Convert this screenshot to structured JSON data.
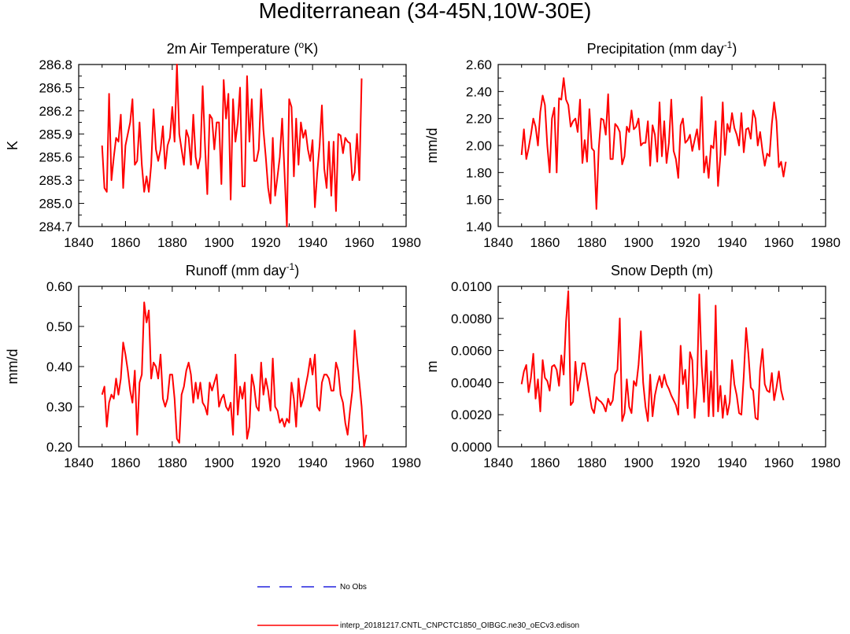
{
  "title": "Mediterranean (34-45N,10W-30E)",
  "colors": {
    "model_line": "#ff0000",
    "obs_line": "#2222dd",
    "axis": "#000000"
  },
  "legend": {
    "items": [
      {
        "label": "No Obs",
        "style": "dashed",
        "color": "#2222dd"
      },
      {
        "label": "interp_20181217.CNTL_CNPCTC1850_OIBGC.ne30_oECv3.edison",
        "style": "solid",
        "color": "#ff0000"
      }
    ]
  },
  "chart_data": [
    {
      "type": "line",
      "title": "2m Air Temperature (",
      "title_sup": "o",
      "title_tail": "K)",
      "ylabel": "K",
      "xlim": [
        1840,
        1980
      ],
      "ylim": [
        284.7,
        286.8
      ],
      "xticks": [
        1840,
        1860,
        1880,
        1900,
        1920,
        1940,
        1960,
        1980
      ],
      "yticks": [
        "284.7",
        "285.0",
        "285.3",
        "285.6",
        "285.9",
        "286.2",
        "286.5",
        "286.8"
      ],
      "x_start": 1850,
      "series": [
        {
          "name": "interp_20181217.CNTL_CNPCTC1850_OIBGC.ne30_oECv3.edison",
          "values": [
            285.75,
            285.2,
            285.15,
            286.42,
            285.3,
            285.6,
            285.85,
            285.8,
            286.15,
            285.2,
            285.75,
            285.9,
            286.05,
            286.35,
            285.5,
            285.55,
            286.05,
            285.5,
            285.15,
            285.35,
            285.15,
            285.5,
            286.22,
            285.7,
            285.55,
            285.7,
            286.0,
            285.45,
            285.75,
            285.85,
            286.25,
            285.8,
            286.8,
            285.9,
            285.7,
            285.5,
            285.95,
            285.85,
            285.5,
            286.15,
            285.6,
            285.45,
            285.6,
            286.52,
            285.75,
            285.12,
            286.15,
            286.1,
            285.7,
            286.05,
            286.05,
            285.25,
            286.6,
            286.1,
            286.42,
            285.05,
            286.35,
            285.8,
            286.05,
            286.5,
            285.22,
            285.22,
            286.65,
            285.8,
            286.35,
            285.55,
            285.55,
            285.7,
            286.48,
            285.95,
            285.6,
            285.2,
            285.0,
            285.85,
            285.1,
            285.35,
            285.6,
            286.1,
            285.4,
            284.7,
            286.35,
            286.25,
            285.35,
            286.1,
            285.5,
            286.05,
            285.85,
            285.95,
            285.7,
            285.55,
            285.82,
            284.95,
            285.4,
            285.75,
            286.27,
            285.45,
            285.2,
            285.8,
            285.1,
            285.8,
            284.9,
            285.9,
            285.88,
            285.65,
            285.85,
            285.8,
            285.78,
            285.3,
            285.4,
            285.9,
            285.3,
            286.62
          ]
        }
      ]
    },
    {
      "type": "line",
      "title": "Precipitation (mm day",
      "title_sup": "-1",
      "title_tail": ")",
      "ylabel": "mm/d",
      "xlim": [
        1840,
        1980
      ],
      "ylim": [
        1.4,
        2.6
      ],
      "xticks": [
        1840,
        1860,
        1880,
        1900,
        1920,
        1940,
        1960,
        1980
      ],
      "yticks": [
        "1.40",
        "1.60",
        "1.80",
        "2.00",
        "2.20",
        "2.40",
        "2.60"
      ],
      "x_start": 1850,
      "series": [
        {
          "name": "interp_20181217.CNTL_CNPCTC1850_OIBGC.ne30_oECv3.edison",
          "values": [
            1.93,
            2.12,
            1.9,
            1.98,
            2.08,
            2.2,
            2.14,
            2.0,
            2.25,
            2.37,
            2.3,
            2.0,
            1.8,
            2.2,
            2.28,
            1.8,
            2.35,
            2.34,
            2.5,
            2.34,
            2.3,
            2.14,
            2.18,
            2.2,
            2.1,
            2.34,
            1.87,
            2.04,
            1.88,
            2.27,
            1.98,
            1.96,
            1.53,
            1.98,
            2.2,
            2.19,
            2.08,
            2.38,
            1.9,
            1.9,
            2.16,
            2.14,
            2.1,
            1.86,
            1.92,
            2.14,
            2.1,
            2.26,
            2.12,
            2.14,
            2.2,
            2.0,
            2.02,
            2.02,
            2.18,
            1.85,
            2.15,
            2.08,
            1.88,
            2.32,
            1.92,
            2.18,
            1.87,
            2.02,
            2.34,
            1.96,
            1.9,
            1.76,
            2.15,
            2.2,
            2.02,
            2.04,
            2.08,
            1.96,
            2.04,
            2.12,
            1.97,
            2.36,
            1.8,
            1.92,
            1.76,
            2.0,
            1.98,
            2.18,
            1.7,
            1.92,
            2.32,
            1.93,
            2.16,
            2.1,
            2.24,
            2.13,
            2.08,
            2.0,
            2.24,
            1.95,
            2.12,
            2.13,
            2.05,
            2.26,
            2.2,
            2.0,
            2.1,
            1.96,
            1.85,
            1.94,
            1.92,
            2.16,
            2.32,
            2.18,
            1.84,
            1.88,
            1.77,
            1.88
          ]
        }
      ]
    },
    {
      "type": "line",
      "title": "Runoff (mm day",
      "title_sup": "-1",
      "title_tail": ")",
      "ylabel": "mm/d",
      "xlim": [
        1840,
        1980
      ],
      "ylim": [
        0.2,
        0.6
      ],
      "xticks": [
        1840,
        1860,
        1880,
        1900,
        1920,
        1940,
        1960,
        1980
      ],
      "yticks": [
        "0.20",
        "0.30",
        "0.40",
        "0.50",
        "0.60"
      ],
      "x_start": 1850,
      "series": [
        {
          "name": "interp_20181217.CNTL_CNPCTC1850_OIBGC.ne30_oECv3.edison",
          "values": [
            0.33,
            0.35,
            0.25,
            0.31,
            0.33,
            0.32,
            0.37,
            0.33,
            0.37,
            0.46,
            0.43,
            0.39,
            0.34,
            0.31,
            0.39,
            0.23,
            0.36,
            0.38,
            0.56,
            0.51,
            0.54,
            0.37,
            0.41,
            0.4,
            0.37,
            0.43,
            0.32,
            0.3,
            0.32,
            0.38,
            0.38,
            0.32,
            0.22,
            0.21,
            0.33,
            0.35,
            0.39,
            0.41,
            0.38,
            0.31,
            0.36,
            0.32,
            0.36,
            0.31,
            0.3,
            0.28,
            0.36,
            0.34,
            0.36,
            0.38,
            0.3,
            0.32,
            0.33,
            0.3,
            0.29,
            0.31,
            0.23,
            0.43,
            0.28,
            0.35,
            0.32,
            0.36,
            0.22,
            0.25,
            0.38,
            0.35,
            0.3,
            0.29,
            0.41,
            0.33,
            0.37,
            0.34,
            0.29,
            0.42,
            0.3,
            0.29,
            0.26,
            0.27,
            0.25,
            0.27,
            0.26,
            0.36,
            0.32,
            0.25,
            0.37,
            0.3,
            0.32,
            0.35,
            0.38,
            0.42,
            0.38,
            0.43,
            0.3,
            0.29,
            0.36,
            0.38,
            0.38,
            0.37,
            0.34,
            0.34,
            0.41,
            0.39,
            0.33,
            0.31,
            0.26,
            0.23,
            0.29,
            0.34,
            0.49,
            0.42,
            0.36,
            0.3,
            0.2,
            0.23
          ]
        }
      ]
    },
    {
      "type": "line",
      "title": "Snow Depth (m)",
      "title_sup": "",
      "title_tail": "",
      "ylabel": "m",
      "xlim": [
        1840,
        1980
      ],
      "ylim": [
        0.0,
        0.01
      ],
      "xticks": [
        1840,
        1860,
        1880,
        1900,
        1920,
        1940,
        1960,
        1980
      ],
      "yticks": [
        "0.0000",
        "0.0020",
        "0.0040",
        "0.0060",
        "0.0080",
        "0.0100"
      ],
      "x_start": 1850,
      "series": [
        {
          "name": "interp_20181217.CNTL_CNPCTC1850_OIBGC.ne30_oECv3.edison",
          "values": [
            0.0039,
            0.0047,
            0.0051,
            0.0034,
            0.0043,
            0.0058,
            0.003,
            0.0042,
            0.0022,
            0.0054,
            0.0043,
            0.0041,
            0.0035,
            0.005,
            0.0051,
            0.0048,
            0.0038,
            0.0057,
            0.0045,
            0.0078,
            0.0097,
            0.0026,
            0.0028,
            0.0053,
            0.0035,
            0.0042,
            0.0052,
            0.0052,
            0.0043,
            0.0033,
            0.0024,
            0.0021,
            0.0031,
            0.0029,
            0.0028,
            0.0026,
            0.0022,
            0.003,
            0.0026,
            0.0029,
            0.0045,
            0.0048,
            0.008,
            0.0016,
            0.0021,
            0.0042,
            0.0025,
            0.0021,
            0.0041,
            0.0038,
            0.0051,
            0.0072,
            0.004,
            0.0025,
            0.0016,
            0.0045,
            0.0019,
            0.0032,
            0.0039,
            0.0044,
            0.0037,
            0.0045,
            0.0039,
            0.0036,
            0.0032,
            0.0029,
            0.0026,
            0.002,
            0.0063,
            0.0039,
            0.0048,
            0.0024,
            0.0059,
            0.0054,
            0.0018,
            0.0039,
            0.0095,
            0.0051,
            0.0028,
            0.006,
            0.0019,
            0.0047,
            0.0019,
            0.0088,
            0.0022,
            0.0038,
            0.0018,
            0.0032,
            0.002,
            0.0028,
            0.0054,
            0.0039,
            0.0032,
            0.0021,
            0.002,
            0.0044,
            0.0074,
            0.0058,
            0.0037,
            0.0035,
            0.0018,
            0.0017,
            0.0048,
            0.0061,
            0.0039,
            0.0035,
            0.0034,
            0.0046,
            0.0029,
            0.0037,
            0.0047,
            0.0035,
            0.0029
          ]
        }
      ]
    }
  ]
}
